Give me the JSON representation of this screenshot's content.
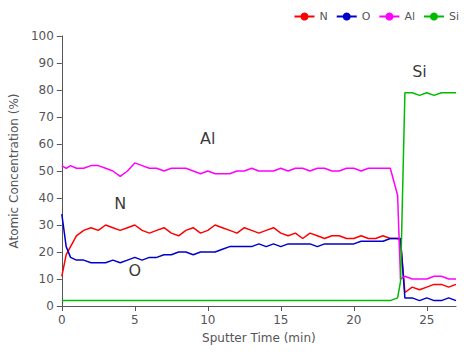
{
  "chart_data": {
    "type": "line",
    "xlabel": "Sputter Time (min)",
    "ylabel": "Atomic Concentration (%)",
    "xlim": [
      0,
      27
    ],
    "ylim": [
      0,
      100
    ],
    "xticks": [
      0,
      5,
      10,
      15,
      20,
      25
    ],
    "yticks": [
      0,
      10,
      20,
      30,
      40,
      50,
      60,
      70,
      80,
      90,
      100
    ],
    "grid": false,
    "legend": "upper right",
    "annotations": [
      {
        "text": "Al",
        "x": 10,
        "y": 62
      },
      {
        "text": "N",
        "x": 4,
        "y": 38
      },
      {
        "text": "O",
        "x": 5,
        "y": 13
      },
      {
        "text": "Si",
        "x": 24.5,
        "y": 87
      }
    ],
    "series": [
      {
        "name": "N",
        "color": "#ff0000",
        "x": [
          0,
          0.3,
          0.6,
          1.0,
          1.5,
          2.0,
          2.5,
          3.0,
          3.5,
          4.0,
          4.5,
          5.0,
          5.5,
          6.0,
          6.5,
          7.0,
          7.5,
          8.0,
          8.5,
          9.0,
          9.5,
          10.0,
          10.5,
          11.0,
          11.5,
          12.0,
          12.5,
          13.0,
          13.5,
          14.0,
          14.5,
          15.0,
          15.5,
          16.0,
          16.5,
          17.0,
          17.5,
          18.0,
          18.5,
          19.0,
          19.5,
          20.0,
          20.5,
          21.0,
          21.5,
          22.0,
          22.5,
          23.0,
          23.2,
          23.5,
          24.0,
          24.5,
          25.0,
          25.5,
          26.0,
          26.5,
          27.0
        ],
        "values": [
          11,
          19,
          22,
          26,
          28,
          29,
          28,
          30,
          29,
          28,
          29,
          30,
          28,
          27,
          28,
          29,
          27,
          26,
          28,
          29,
          27,
          28,
          30,
          29,
          28,
          27,
          29,
          28,
          27,
          28,
          29,
          27,
          26,
          27,
          25,
          27,
          26,
          25,
          26,
          26,
          25,
          25,
          26,
          25,
          25,
          26,
          25,
          25,
          24,
          5,
          7,
          6,
          7,
          8,
          8,
          7,
          8
        ]
      },
      {
        "name": "O",
        "color": "#0000cd",
        "x": [
          0,
          0.3,
          0.6,
          1.0,
          1.5,
          2.0,
          2.5,
          3.0,
          3.5,
          4.0,
          4.5,
          5.0,
          5.5,
          6.0,
          6.5,
          7.0,
          7.5,
          8.0,
          8.5,
          9.0,
          9.5,
          10.0,
          10.5,
          11.0,
          11.5,
          12.0,
          12.5,
          13.0,
          13.5,
          14.0,
          14.5,
          15.0,
          15.5,
          16.0,
          16.5,
          17.0,
          17.5,
          18.0,
          18.5,
          19.0,
          19.5,
          20.0,
          20.5,
          21.0,
          21.5,
          22.0,
          22.5,
          23.0,
          23.2,
          23.5,
          24.0,
          24.5,
          25.0,
          25.5,
          26.0,
          26.5,
          27.0
        ],
        "values": [
          34,
          22,
          18,
          17,
          17,
          16,
          16,
          16,
          17,
          16,
          17,
          18,
          17,
          18,
          18,
          19,
          19,
          20,
          20,
          19,
          20,
          20,
          20,
          21,
          22,
          22,
          22,
          22,
          23,
          22,
          23,
          22,
          23,
          23,
          23,
          23,
          22,
          23,
          23,
          23,
          23,
          23,
          24,
          24,
          24,
          24,
          25,
          25,
          25,
          3,
          3,
          2,
          3,
          2,
          2,
          3,
          2
        ]
      },
      {
        "name": "Al",
        "color": "#ff00ff",
        "x": [
          0,
          0.3,
          0.6,
          1.0,
          1.5,
          2.0,
          2.5,
          3.0,
          3.5,
          4.0,
          4.5,
          5.0,
          5.5,
          6.0,
          6.5,
          7.0,
          7.5,
          8.0,
          8.5,
          9.0,
          9.5,
          10.0,
          10.5,
          11.0,
          11.5,
          12.0,
          12.5,
          13.0,
          13.5,
          14.0,
          14.5,
          15.0,
          15.5,
          16.0,
          16.5,
          17.0,
          17.5,
          18.0,
          18.5,
          19.0,
          19.5,
          20.0,
          20.5,
          21.0,
          21.5,
          22.0,
          22.5,
          23.0,
          23.2,
          23.5,
          24.0,
          24.5,
          25.0,
          25.5,
          26.0,
          26.5,
          27.0
        ],
        "values": [
          52,
          51,
          52,
          51,
          51,
          52,
          52,
          51,
          50,
          48,
          50,
          53,
          52,
          51,
          51,
          50,
          51,
          51,
          51,
          50,
          49,
          50,
          49,
          49,
          49,
          50,
          50,
          51,
          50,
          50,
          50,
          51,
          50,
          51,
          51,
          50,
          51,
          51,
          50,
          50,
          51,
          51,
          50,
          51,
          51,
          51,
          51,
          41,
          10,
          11,
          10,
          10,
          10,
          11,
          11,
          10,
          10
        ]
      },
      {
        "name": "Si",
        "color": "#00bb00",
        "x": [
          0,
          0.5,
          1.0,
          2.0,
          3.0,
          4.0,
          5.0,
          6.0,
          7.0,
          8.0,
          9.0,
          10.0,
          11.0,
          12.0,
          13.0,
          14.0,
          15.0,
          16.0,
          17.0,
          18.0,
          19.0,
          20.0,
          21.0,
          22.0,
          22.5,
          23.0,
          23.2,
          23.5,
          24.0,
          24.5,
          25.0,
          25.5,
          26.0,
          26.5,
          27.0
        ],
        "values": [
          2,
          2,
          2,
          2,
          2,
          2,
          2,
          2,
          2,
          2,
          2,
          2,
          2,
          2,
          2,
          2,
          2,
          2,
          2,
          2,
          2,
          2,
          2,
          2,
          2,
          3,
          9,
          79,
          79,
          78,
          79,
          78,
          79,
          79,
          79
        ]
      }
    ]
  }
}
